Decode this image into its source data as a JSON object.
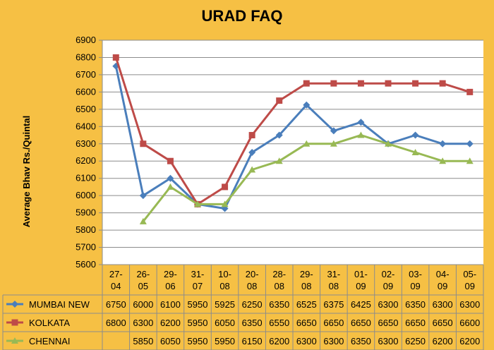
{
  "chart_data": {
    "type": "line",
    "title": "URAD FAQ",
    "xlabel": "",
    "ylabel": "Average Bhav Rs./Quintal",
    "ylim": [
      5600,
      6900
    ],
    "ytick_step": 100,
    "grid": "horizontal",
    "legend": "data-table-below",
    "categories": [
      "27-04",
      "26-05",
      "29-06",
      "31-07",
      "10-08",
      "20-08",
      "28-08",
      "29-08",
      "31-08",
      "01-09",
      "02-09",
      "03-09",
      "04-09",
      "05-09"
    ],
    "series": [
      {
        "name": "MUMBAI NEW",
        "color": "#4a7ebb",
        "marker": "diamond",
        "values": [
          6750,
          6000,
          6100,
          5950,
          5925,
          6250,
          6350,
          6525,
          6375,
          6425,
          6300,
          6350,
          6300,
          6300
        ]
      },
      {
        "name": "KOLKATA",
        "color": "#be4b48",
        "marker": "square",
        "values": [
          6800,
          6300,
          6200,
          5950,
          6050,
          6350,
          6550,
          6650,
          6650,
          6650,
          6650,
          6650,
          6650,
          6600
        ]
      },
      {
        "name": "CHENNAI",
        "color": "#98b954",
        "marker": "triangle",
        "values": [
          null,
          5850,
          6050,
          5950,
          5950,
          6150,
          6200,
          6300,
          6300,
          6350,
          6300,
          6250,
          6200,
          6200
        ]
      }
    ]
  }
}
